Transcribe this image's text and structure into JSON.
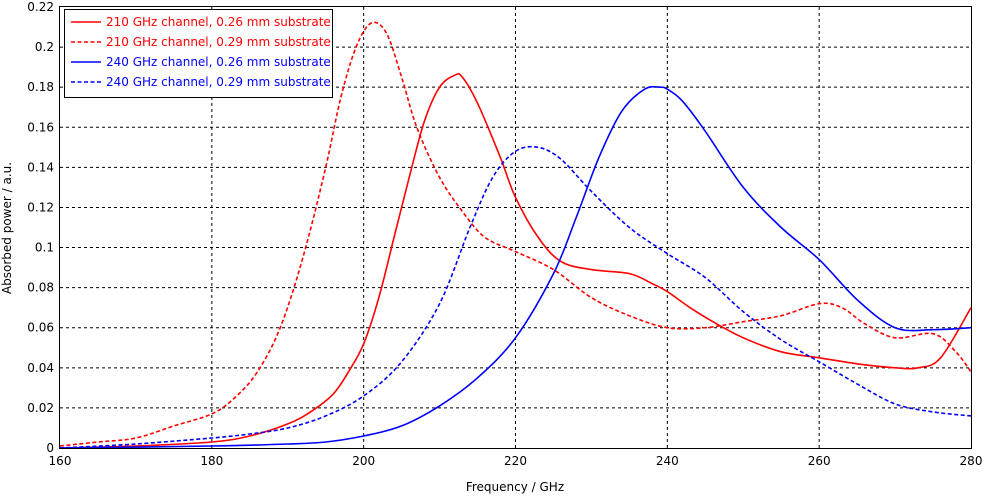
{
  "chart_data": {
    "type": "line",
    "title": "",
    "xlabel": "Frequency / GHz",
    "ylabel": "Absorbed power / a.u.",
    "xlim": [
      160,
      280
    ],
    "ylim": [
      0,
      0.22
    ],
    "xticks": [
      160,
      180,
      200,
      220,
      240,
      260,
      280
    ],
    "xtick_labels": [
      "160",
      "180",
      "200",
      "220",
      "240",
      "260",
      "280"
    ],
    "yticks": [
      0,
      0.02,
      0.04,
      0.06,
      0.08,
      0.1,
      0.12,
      0.14,
      0.16,
      0.18,
      0.2,
      0.22
    ],
    "ytick_labels": [
      "0",
      "0.02",
      "0.04",
      "0.06",
      "0.08",
      "0.1",
      "0.12",
      "0.14",
      "0.16",
      "0.18",
      "0.2",
      "0.22"
    ],
    "grid": true,
    "legend_position": "top-left",
    "series": [
      {
        "name": "210 GHz channel, 0.26 mm substrate",
        "color": "#ff0000",
        "dash": "solid",
        "x": [
          160,
          170,
          180,
          185,
          190,
          193,
          196,
          198,
          200,
          202,
          204,
          206,
          208,
          210,
          212,
          213,
          215,
          218,
          220,
          223,
          226,
          230,
          235,
          238,
          240,
          243,
          246,
          250,
          255,
          260,
          265,
          270,
          273,
          276,
          280
        ],
        "y": [
          0.0,
          0.001,
          0.003,
          0.006,
          0.012,
          0.018,
          0.027,
          0.038,
          0.052,
          0.075,
          0.105,
          0.135,
          0.163,
          0.18,
          0.186,
          0.185,
          0.172,
          0.145,
          0.125,
          0.105,
          0.093,
          0.089,
          0.087,
          0.082,
          0.078,
          0.07,
          0.063,
          0.055,
          0.048,
          0.045,
          0.042,
          0.04,
          0.04,
          0.045,
          0.07
        ]
      },
      {
        "name": "210 GHz channel, 0.29 mm substrate",
        "color": "#ff0000",
        "dash": "dashed",
        "x": [
          160,
          165,
          170,
          175,
          180,
          183,
          186,
          189,
          192,
          195,
          197,
          199,
          201,
          203,
          205,
          207,
          210,
          213,
          216,
          220,
          225,
          230,
          235,
          240,
          245,
          250,
          255,
          260,
          263,
          266,
          270,
          275,
          278,
          280
        ],
        "y": [
          0.001,
          0.003,
          0.005,
          0.011,
          0.017,
          0.025,
          0.038,
          0.06,
          0.095,
          0.14,
          0.175,
          0.2,
          0.212,
          0.207,
          0.185,
          0.16,
          0.135,
          0.118,
          0.105,
          0.098,
          0.089,
          0.075,
          0.066,
          0.06,
          0.06,
          0.063,
          0.066,
          0.072,
          0.07,
          0.062,
          0.055,
          0.057,
          0.048,
          0.038
        ]
      },
      {
        "name": "240 GHz channel, 0.26 mm substrate",
        "color": "#0000ff",
        "dash": "solid",
        "x": [
          160,
          180,
          190,
          195,
          200,
          205,
          210,
          215,
          220,
          225,
          228,
          231,
          234,
          237,
          239,
          240,
          242,
          245,
          250,
          255,
          260,
          265,
          270,
          275,
          280
        ],
        "y": [
          0.0,
          0.001,
          0.002,
          0.003,
          0.006,
          0.011,
          0.021,
          0.035,
          0.055,
          0.087,
          0.115,
          0.145,
          0.168,
          0.179,
          0.18,
          0.179,
          0.173,
          0.158,
          0.13,
          0.11,
          0.094,
          0.074,
          0.06,
          0.059,
          0.06
        ]
      },
      {
        "name": "240 GHz channel, 0.29 mm substrate",
        "color": "#0000ff",
        "dash": "dashed",
        "x": [
          160,
          170,
          180,
          185,
          190,
          195,
          200,
          205,
          210,
          214,
          217,
          220,
          223,
          226,
          230,
          235,
          240,
          245,
          250,
          255,
          260,
          265,
          270,
          275,
          280
        ],
        "y": [
          0.0,
          0.002,
          0.005,
          0.007,
          0.01,
          0.016,
          0.026,
          0.043,
          0.072,
          0.11,
          0.135,
          0.148,
          0.15,
          0.144,
          0.128,
          0.11,
          0.097,
          0.085,
          0.068,
          0.054,
          0.043,
          0.032,
          0.022,
          0.018,
          0.016
        ]
      }
    ]
  }
}
